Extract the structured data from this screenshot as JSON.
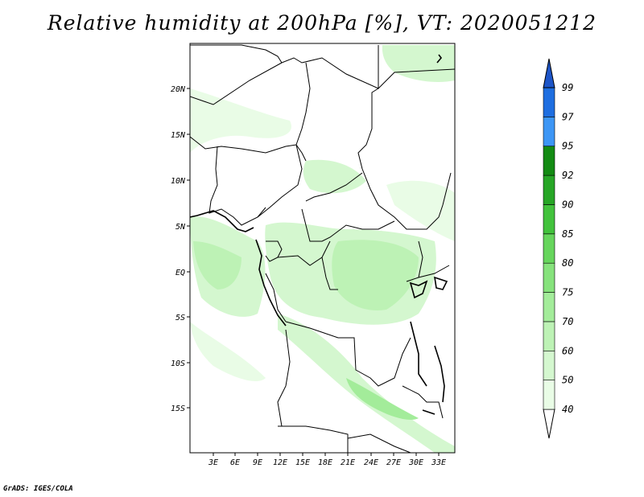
{
  "title": "Relative humidity at 200hPa [%], VT: 2020051212",
  "credit": "GrADS: IGES/COLA",
  "map": {
    "lat_ticks": [
      "20N",
      "15N",
      "10N",
      "5N",
      "EQ",
      "5S",
      "10S",
      "15S"
    ],
    "lon_ticks": [
      "3E",
      "6E",
      "9E",
      "12E",
      "15E",
      "18E",
      "21E",
      "24E",
      "27E",
      "30E",
      "33E"
    ],
    "field": "Relative humidity",
    "units": "%"
  },
  "colorbar": {
    "levels": [
      "40",
      "50",
      "60",
      "70",
      "75",
      "80",
      "85",
      "90",
      "92",
      "95",
      "97",
      "99"
    ],
    "colors": [
      "#e9fce6",
      "#d4f7cf",
      "#bdf2b5",
      "#a3ec9a",
      "#86e27c",
      "#66d55c",
      "#42c23c",
      "#27a626",
      "#138b13",
      "#3d96f5",
      "#1e6ee0",
      "#1d55c8"
    ]
  }
}
